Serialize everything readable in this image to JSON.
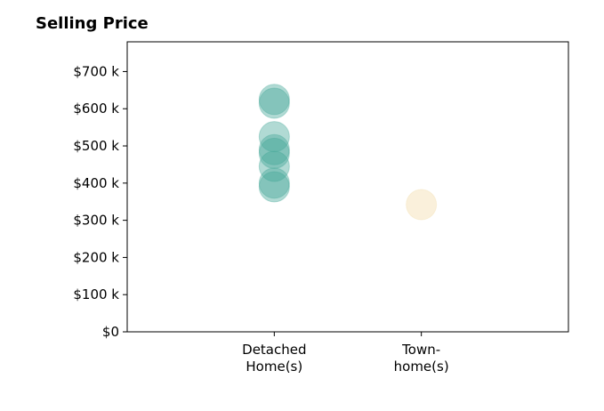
{
  "chart_data": {
    "type": "scatter",
    "title": "Selling Price",
    "xlabel": "",
    "ylabel": "",
    "categories": [
      [
        "Detached",
        "Home(s)"
      ],
      [
        "Town-",
        "home(s)"
      ]
    ],
    "x_range": [
      -1,
      2
    ],
    "ylim": [
      0,
      780000
    ],
    "yticks": [
      0,
      100000,
      200000,
      300000,
      400000,
      500000,
      600000,
      700000
    ],
    "ytick_labels": [
      "$0",
      "$100 k",
      "$200 k",
      "$300 k",
      "$400 k",
      "$500 k",
      "$600 k",
      "$700 k"
    ],
    "grid": false,
    "series": [
      {
        "category_index": 0,
        "color": "#45a898",
        "values": [
          625000,
          615000,
          525000,
          490000,
          480000,
          445000,
          400000,
          390000
        ]
      },
      {
        "category_index": 1,
        "color": "#f2dcaa",
        "values": [
          342000
        ]
      }
    ]
  }
}
